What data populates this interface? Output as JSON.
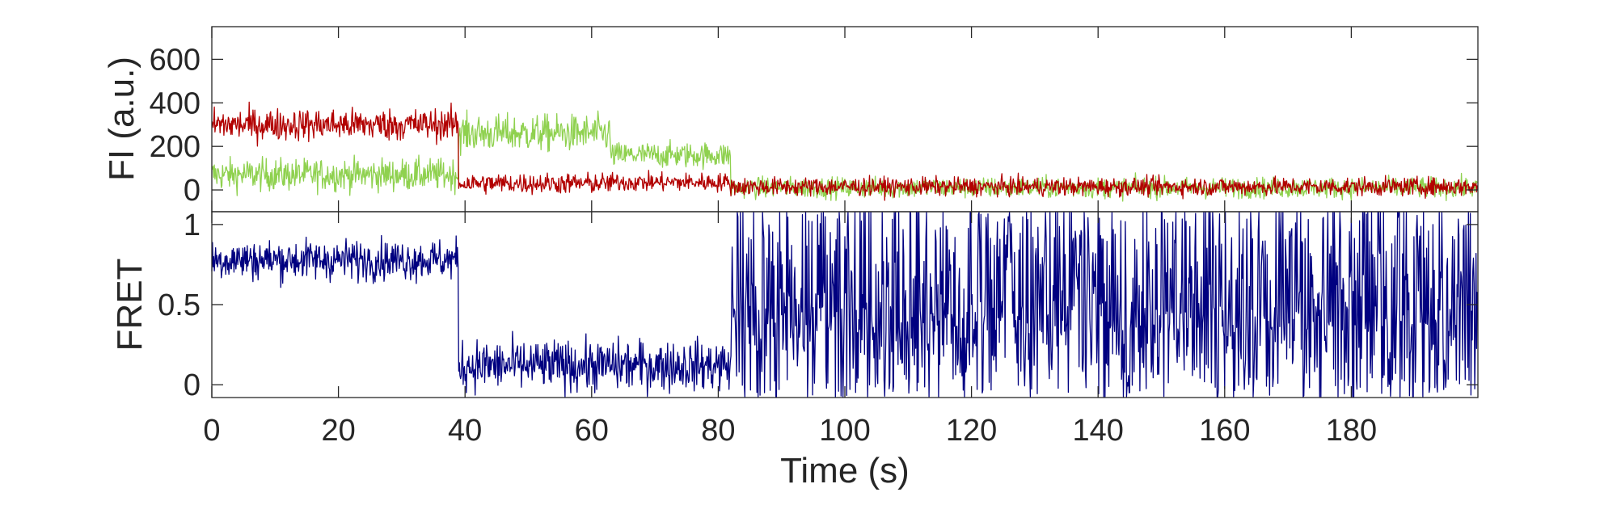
{
  "colors": {
    "donor": "#8fd14f",
    "acceptor": "#b20000",
    "fret": "#000080",
    "axes": "#262626"
  },
  "chart_data": [
    {
      "type": "line",
      "ylabel": "FI (a.u.)",
      "xlabel": "",
      "xlim": [
        0,
        200
      ],
      "ylim": [
        -100,
        750
      ],
      "yticks": [
        0,
        200,
        400,
        600
      ],
      "ytick_labels": [
        "0",
        "200",
        "400",
        "600"
      ],
      "grid": false,
      "series": [
        {
          "color": "#8fd14f",
          "segments": [
            {
              "x": [
                0,
                39
              ],
              "y": [
                70,
                70
              ],
              "noise": 70
            },
            {
              "x": [
                39,
                63
              ],
              "y": [
                260,
                260
              ],
              "noise": 80
            },
            {
              "x": [
                63,
                82
              ],
              "y": [
                160,
                160
              ],
              "noise": 55
            },
            {
              "x": [
                82,
                200
              ],
              "y": [
                10,
                10
              ],
              "noise": 45
            }
          ]
        },
        {
          "color": "#b20000",
          "segments": [
            {
              "x": [
                0,
                39
              ],
              "y": [
                300,
                300
              ],
              "noise": 70
            },
            {
              "x": [
                39,
                63
              ],
              "y": [
                30,
                30
              ],
              "noise": 45
            },
            {
              "x": [
                63,
                82
              ],
              "y": [
                35,
                35
              ],
              "noise": 40
            },
            {
              "x": [
                82,
                200
              ],
              "y": [
                15,
                15
              ],
              "noise": 40
            }
          ]
        }
      ]
    },
    {
      "type": "line",
      "ylabel": "FRET",
      "xlabel": "Time (s)",
      "xlim": [
        0,
        200
      ],
      "ylim": [
        -0.08,
        1.08
      ],
      "yticks": [
        0,
        0.5,
        1
      ],
      "ytick_labels": [
        "0",
        "0.5",
        "1"
      ],
      "xticks": [
        0,
        20,
        40,
        60,
        80,
        100,
        120,
        140,
        160,
        180
      ],
      "xtick_labels": [
        "0",
        "20",
        "40",
        "60",
        "80",
        "100",
        "120",
        "140",
        "160",
        "180"
      ],
      "grid": false,
      "series": [
        {
          "color": "#000080",
          "segments": [
            {
              "x": [
                0,
                39
              ],
              "y": [
                0.78,
                0.78
              ],
              "noise": 0.12
            },
            {
              "x": [
                39,
                82
              ],
              "y": [
                0.12,
                0.12
              ],
              "noise": 0.15
            },
            {
              "x": [
                82,
                200
              ],
              "y": [
                0.5,
                0.5
              ],
              "noise": 0.5
            }
          ]
        }
      ]
    }
  ]
}
